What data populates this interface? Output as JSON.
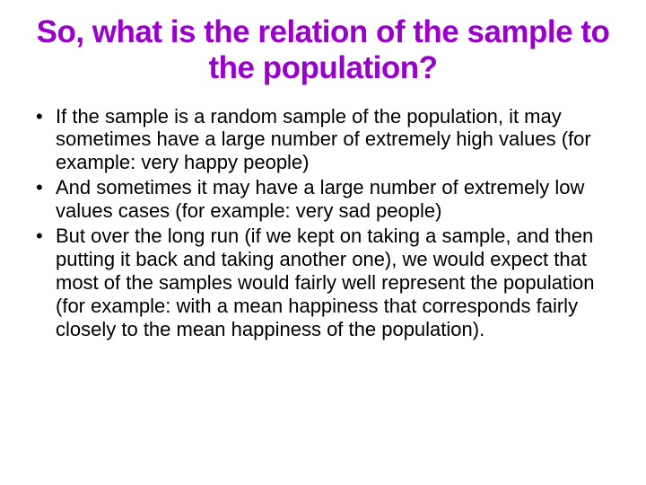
{
  "slide": {
    "title": "So, what is the relation of the sample to the population?",
    "title_color": "#9900cc",
    "title_fontsize": 35,
    "title_font": "Arial Black",
    "body_fontsize": 22,
    "body_color": "#000000",
    "background_color": "#ffffff",
    "bullets": [
      "If the sample is a random sample of the population, it may sometimes have a large number of extremely high values (for example: very happy people)",
      "And sometimes it may have a large number of extremely low values cases (for example: very sad people)",
      "But over the long run (if we kept on taking a sample, and then putting it back and taking another one), we would expect that most of the samples would fairly well represent the population (for example: with a mean happiness that corresponds fairly closely to the mean happiness of the population)."
    ]
  }
}
